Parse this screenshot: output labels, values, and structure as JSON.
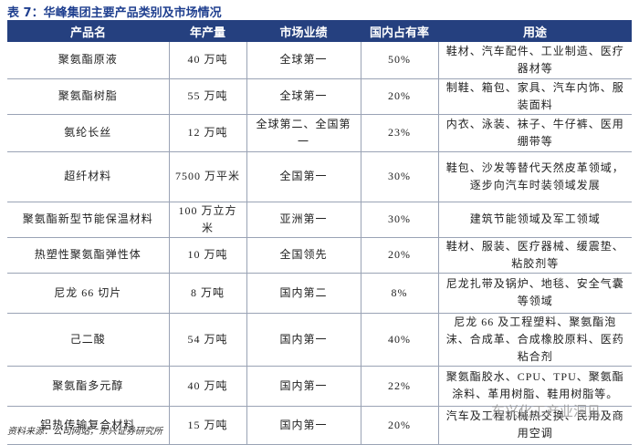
{
  "header": {
    "title": "表 7：华峰集团主要产品类别及市场情况"
  },
  "table": {
    "columns": [
      "产品名",
      "年产量",
      "市场业绩",
      "国内占有率",
      "用途"
    ],
    "rows": [
      [
        "聚氨酯原液",
        "40 万吨",
        "全球第一",
        "50%",
        "鞋材、汽车配件、工业制造、医疗器材等"
      ],
      [
        "聚氨酯树脂",
        "55 万吨",
        "全球第一",
        "20%",
        "制鞋、箱包、家具、汽车内饰、服装面料"
      ],
      [
        "氨纶长丝",
        "12 万吨",
        "全球第二、全国第一",
        "23%",
        "内衣、泳装、袜子、牛仔裤、医用绷带等"
      ],
      [
        "超纤材料",
        "7500 万平米",
        "全国第一",
        "30%",
        "鞋包、沙发等替代天然皮革领域，逐步向汽车时装领域发展"
      ],
      [
        "聚氨酯新型节能保温材料",
        "100 万立方米",
        "亚洲第一",
        "30%",
        "建筑节能领域及军工领域"
      ],
      [
        "热塑性聚氨酯弹性体",
        "10 万吨",
        "全国领先",
        "20%",
        "鞋材、服装、医疗器械、缓震垫、粘胶剂等"
      ],
      [
        "尼龙 66 切片",
        "8 万吨",
        "国内第二",
        "8%",
        "尼龙扎带及锅炉、地毯、安全气囊等领域"
      ],
      [
        "己二酸",
        "54 万吨",
        "国内第一",
        "40%",
        "尼龙 66 及工程塑料、聚氨酯泡沫、合成革、合成橡胶原料、医药粘合剂"
      ],
      [
        "聚氨酯多元醇",
        "40 万吨",
        "国内第一",
        "22%",
        "聚氨酯胶水、CPU、TPU、聚氨酯涂料、革用树脂、鞋用树脂等。"
      ],
      [
        "铝热传输复合材料",
        "15 万吨",
        "国内第一",
        "20%",
        "汽车及工程机械热交换、民用及商用空调"
      ]
    ]
  },
  "source": "资料来源：公司网站，东兴证券研究所",
  "watermark": "东兴化工产业洞见"
}
